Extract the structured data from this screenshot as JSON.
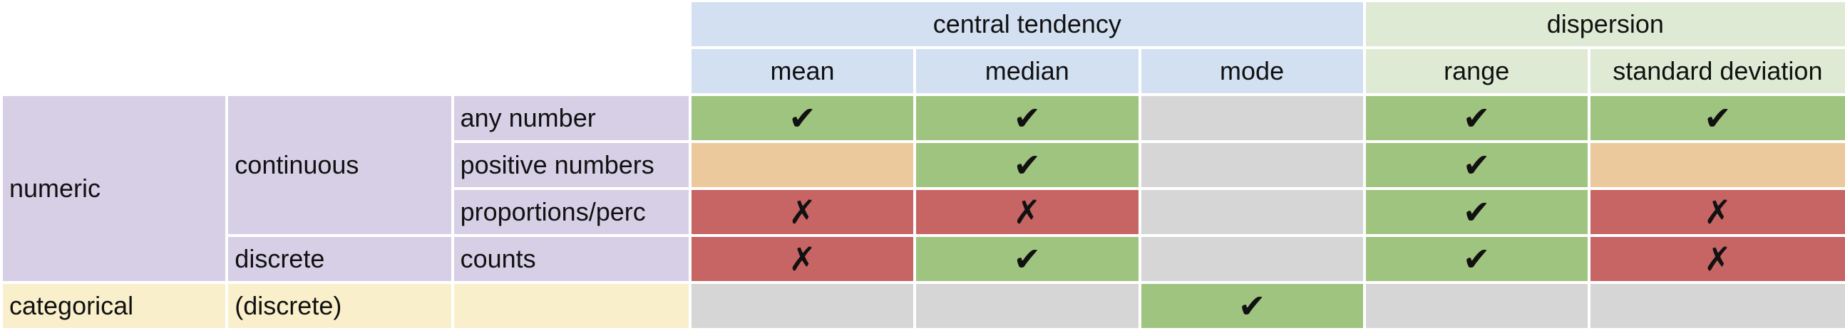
{
  "header": {
    "central_tendency": "central tendency",
    "dispersion": "dispersion",
    "columns": [
      "mean",
      "median",
      "mode",
      "range",
      "standard deviation"
    ]
  },
  "rows": {
    "numeric": "numeric",
    "continuous": "continuous",
    "discrete": "discrete",
    "any_number": "any number",
    "positive_numbers": "positive numbers",
    "proportions": "proportions/perc",
    "counts": "counts",
    "categorical": "categorical",
    "discrete_paren": "(discrete)"
  },
  "marks": {
    "check": "✔",
    "cross": "✗"
  },
  "colors": {
    "central_tendency_header": "#d3e0f2",
    "dispersion_header": "#deead4",
    "numeric_rows": "#d6cfe6",
    "categorical_row": "#f9efcb",
    "suitable": "#9fc47f",
    "unsuitable": "#c76464",
    "caution": "#ecc99d",
    "not_applicable": "#d6d6d6"
  },
  "cells": {
    "any_number": [
      "suitable",
      "suitable",
      "not_applicable",
      "suitable",
      "suitable"
    ],
    "positive_numbers": [
      "caution",
      "suitable",
      "not_applicable",
      "suitable",
      "caution"
    ],
    "proportions": [
      "unsuitable",
      "unsuitable",
      "not_applicable",
      "suitable",
      "unsuitable"
    ],
    "counts": [
      "unsuitable",
      "suitable",
      "not_applicable",
      "suitable",
      "unsuitable"
    ],
    "discrete_paren": [
      "not_applicable",
      "not_applicable",
      "suitable",
      "not_applicable",
      "not_applicable"
    ]
  }
}
